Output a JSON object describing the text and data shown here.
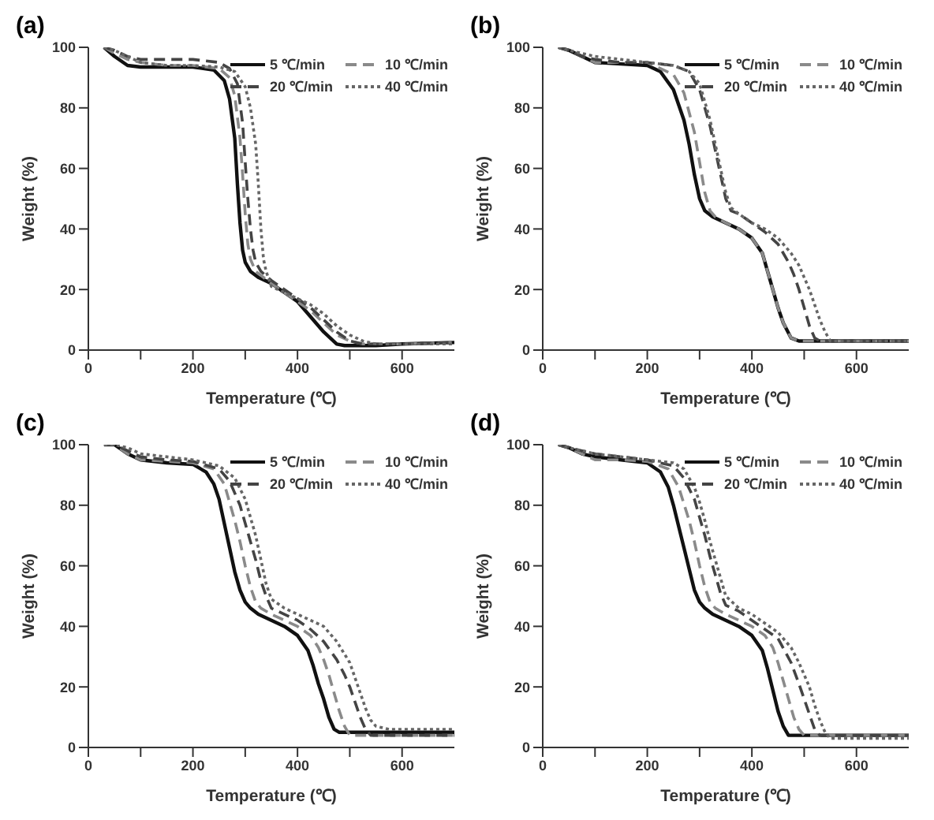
{
  "chart_data": [
    {
      "type": "line",
      "title": "(a)",
      "xlabel": "Temperature (℃)",
      "ylabel": "Weight (%)",
      "xlim": [
        0,
        700
      ],
      "xticks": [
        0,
        {
          "value": 100,
          "label": null
        },
        200,
        {
          "value": 300,
          "label": null
        },
        400,
        {
          "value": 500,
          "label": null
        },
        600
      ],
      "ylim": [
        0,
        100
      ],
      "yticks": [
        0,
        20,
        40,
        60,
        80,
        100
      ],
      "legend": "top right",
      "marker": "none",
      "series": [
        {
          "name": "5 ℃/min",
          "color": "#111111",
          "line_style": "solid",
          "x": [
            30,
            50,
            75,
            100,
            150,
            200,
            240,
            260,
            270,
            280,
            285,
            290,
            295,
            300,
            310,
            325,
            350,
            375,
            400,
            425,
            450,
            475,
            490,
            550,
            600,
            700
          ],
          "values": [
            100,
            97,
            94,
            93.5,
            93.5,
            93.5,
            92.5,
            89,
            83,
            70,
            55,
            42,
            33,
            29,
            26,
            24,
            22,
            19,
            16,
            11,
            6,
            2,
            1.5,
            1.5,
            2,
            2.5
          ]
        },
        {
          "name": "10 ℃/min",
          "color": "#8a8a8a",
          "line_style": "dashed",
          "x": [
            30,
            50,
            75,
            100,
            150,
            200,
            250,
            270,
            280,
            290,
            295,
            300,
            305,
            310,
            320,
            350,
            375,
            400,
            425,
            450,
            475,
            500,
            525,
            550,
            600,
            700
          ],
          "values": [
            100,
            98,
            96,
            95,
            94,
            94,
            93,
            90,
            84,
            70,
            58,
            45,
            35,
            30,
            26,
            22,
            19,
            16,
            13,
            9,
            5,
            3,
            2,
            2,
            2,
            2.5
          ]
        },
        {
          "name": "20 ℃/min",
          "color": "#444444",
          "line_style": "dashed",
          "x": [
            30,
            50,
            75,
            100,
            150,
            200,
            250,
            270,
            285,
            295,
            300,
            305,
            310,
            315,
            320,
            330,
            350,
            375,
            400,
            425,
            450,
            475,
            500,
            525,
            550,
            600,
            700
          ],
          "values": [
            100,
            99,
            97,
            96,
            96,
            96,
            95,
            93,
            88,
            75,
            62,
            50,
            40,
            33,
            29,
            26,
            23,
            20,
            17,
            14,
            10,
            6,
            3,
            2,
            2,
            2,
            2.5
          ]
        },
        {
          "name": "40 ℃/min",
          "color": "#666666",
          "line_style": "dotted",
          "x": [
            30,
            50,
            75,
            100,
            150,
            200,
            250,
            280,
            300,
            310,
            320,
            325,
            330,
            335,
            340,
            350,
            375,
            400,
            425,
            450,
            475,
            500,
            525,
            550,
            600,
            700
          ],
          "values": [
            100,
            99,
            97,
            95,
            94,
            94,
            93.5,
            92,
            87,
            80,
            68,
            55,
            40,
            30,
            26,
            21,
            19,
            17,
            15,
            12,
            8,
            5,
            3,
            2,
            2,
            2
          ]
        }
      ]
    },
    {
      "type": "line",
      "title": "(b)",
      "xlabel": "Temperature (℃)",
      "ylabel": "Weight (%)",
      "xlim": [
        0,
        700
      ],
      "xticks": [
        0,
        {
          "value": 100,
          "label": null
        },
        200,
        {
          "value": 300,
          "label": null
        },
        400,
        {
          "value": 500,
          "label": null
        },
        600
      ],
      "ylim": [
        0,
        100
      ],
      "yticks": [
        0,
        20,
        40,
        60,
        80,
        100
      ],
      "legend": "top right",
      "marker": "none",
      "series": [
        {
          "name": "5 ℃/min",
          "color": "#111111",
          "line_style": "solid",
          "x": [
            30,
            50,
            75,
            100,
            150,
            200,
            225,
            250,
            270,
            280,
            290,
            300,
            310,
            325,
            350,
            375,
            400,
            420,
            430,
            440,
            450,
            460,
            475,
            490,
            500,
            550,
            600,
            700
          ],
          "values": [
            100,
            99,
            97,
            95,
            94.5,
            94,
            92,
            86,
            76,
            68,
            58,
            50,
            46,
            44,
            42,
            40,
            37,
            32,
            26,
            20,
            14,
            9,
            4,
            3,
            3,
            3,
            3,
            3
          ]
        },
        {
          "name": "10 ℃/min",
          "color": "#8a8a8a",
          "line_style": "dashed",
          "x": [
            30,
            50,
            75,
            100,
            150,
            200,
            250,
            270,
            290,
            300,
            310,
            320,
            330,
            340,
            350,
            375,
            400,
            420,
            430,
            440,
            450,
            460,
            475,
            490,
            500,
            550,
            600,
            700
          ],
          "values": [
            100,
            99,
            97,
            95,
            95,
            95,
            91,
            85,
            72,
            62,
            52,
            46,
            44,
            43,
            42,
            40,
            37,
            32,
            26,
            20,
            14,
            9,
            4,
            3,
            3,
            3,
            3,
            3
          ]
        },
        {
          "name": "20 ℃/min",
          "color": "#444444",
          "line_style": "dashed",
          "x": [
            30,
            50,
            75,
            100,
            150,
            200,
            250,
            280,
            300,
            310,
            320,
            330,
            340,
            350,
            360,
            375,
            400,
            425,
            450,
            470,
            480,
            490,
            500,
            510,
            520,
            530,
            550,
            600,
            700
          ],
          "values": [
            100,
            99,
            97,
            96,
            95,
            95,
            94,
            92,
            86,
            80,
            74,
            66,
            58,
            50,
            46,
            45,
            42,
            39,
            35,
            29,
            25,
            20,
            14,
            8,
            4,
            3,
            3,
            3,
            3
          ]
        },
        {
          "name": "40 ℃/min",
          "color": "#666666",
          "line_style": "dotted",
          "x": [
            30,
            50,
            75,
            100,
            150,
            200,
            250,
            280,
            300,
            310,
            320,
            330,
            340,
            350,
            360,
            375,
            400,
            425,
            450,
            475,
            490,
            500,
            510,
            520,
            530,
            540,
            550,
            600,
            700
          ],
          "values": [
            100,
            99,
            98,
            97,
            96,
            95,
            94,
            92,
            88,
            82,
            76,
            68,
            60,
            52,
            47,
            45,
            42,
            40,
            37,
            32,
            28,
            24,
            20,
            15,
            10,
            6,
            3,
            3,
            3
          ]
        }
      ]
    },
    {
      "type": "line",
      "title": "(c)",
      "xlabel": "Temperature (℃)",
      "ylabel": "Weight (%)",
      "xlim": [
        0,
        700
      ],
      "xticks": [
        0,
        {
          "value": 100,
          "label": null
        },
        200,
        {
          "value": 300,
          "label": null
        },
        400,
        {
          "value": 500,
          "label": null
        },
        600
      ],
      "ylim": [
        0,
        100
      ],
      "yticks": [
        0,
        20,
        40,
        60,
        80,
        100
      ],
      "legend": "top right",
      "marker": "none",
      "series": [
        {
          "name": "5 ℃/min",
          "color": "#111111",
          "line_style": "solid",
          "x": [
            30,
            50,
            75,
            100,
            150,
            200,
            225,
            240,
            250,
            260,
            270,
            280,
            290,
            300,
            310,
            325,
            350,
            375,
            400,
            420,
            430,
            440,
            450,
            460,
            470,
            480,
            500,
            600,
            700
          ],
          "values": [
            100,
            100,
            97,
            95,
            94,
            93.5,
            91,
            87,
            82,
            74,
            66,
            58,
            52,
            48,
            46,
            44,
            42,
            40,
            37,
            32,
            27,
            21,
            16,
            10,
            6,
            5,
            5,
            5,
            5
          ]
        },
        {
          "name": "10 ℃/min",
          "color": "#8a8a8a",
          "line_style": "dashed",
          "x": [
            30,
            50,
            75,
            100,
            150,
            200,
            240,
            260,
            280,
            290,
            300,
            310,
            320,
            330,
            340,
            350,
            375,
            400,
            425,
            440,
            450,
            460,
            470,
            480,
            490,
            500,
            525,
            600,
            700
          ],
          "values": [
            100,
            100,
            97,
            95,
            94.5,
            94,
            92,
            87,
            75,
            68,
            60,
            53,
            48,
            46,
            45,
            44,
            42,
            40,
            37,
            33,
            29,
            24,
            18,
            12,
            7,
            4,
            4,
            4,
            4
          ]
        },
        {
          "name": "20 ℃/min",
          "color": "#444444",
          "line_style": "dashed",
          "x": [
            30,
            50,
            75,
            100,
            150,
            200,
            250,
            270,
            290,
            300,
            310,
            320,
            330,
            340,
            350,
            375,
            400,
            425,
            450,
            475,
            490,
            500,
            510,
            520,
            530,
            540,
            550,
            600,
            700
          ],
          "values": [
            100,
            100,
            98,
            96,
            95,
            94.5,
            92,
            88,
            80,
            74,
            68,
            62,
            55,
            50,
            46,
            44,
            42,
            39,
            35,
            29,
            24,
            20,
            15,
            10,
            6,
            4,
            4,
            4,
            4
          ]
        },
        {
          "name": "40 ℃/min",
          "color": "#666666",
          "line_style": "dotted",
          "x": [
            30,
            50,
            75,
            100,
            150,
            200,
            250,
            280,
            300,
            310,
            320,
            330,
            340,
            350,
            375,
            400,
            425,
            450,
            475,
            500,
            510,
            520,
            530,
            540,
            550,
            575,
            600,
            700
          ],
          "values": [
            100,
            100,
            99,
            97,
            96,
            95,
            93,
            89,
            82,
            76,
            70,
            62,
            54,
            49,
            46,
            44,
            42,
            40,
            35,
            28,
            23,
            18,
            13,
            9,
            7,
            6,
            6,
            6
          ]
        }
      ]
    },
    {
      "type": "line",
      "title": "(d)",
      "xlabel": "Temperature (℃)",
      "ylabel": "Weight (%)",
      "xlim": [
        0,
        700
      ],
      "xticks": [
        0,
        {
          "value": 100,
          "label": null
        },
        200,
        {
          "value": 300,
          "label": null
        },
        400,
        {
          "value": 500,
          "label": null
        },
        600
      ],
      "ylim": [
        0,
        100
      ],
      "yticks": [
        0,
        20,
        40,
        60,
        80,
        100
      ],
      "legend": "top right",
      "marker": "none",
      "series": [
        {
          "name": "5 ℃/min",
          "color": "#111111",
          "line_style": "solid",
          "x": [
            30,
            50,
            75,
            100,
            150,
            200,
            225,
            240,
            250,
            260,
            270,
            280,
            290,
            300,
            310,
            325,
            350,
            375,
            400,
            420,
            430,
            440,
            450,
            460,
            470,
            480,
            500,
            600,
            700
          ],
          "values": [
            100,
            99,
            97,
            96,
            95,
            94,
            91,
            86,
            80,
            73,
            66,
            59,
            52,
            48,
            46,
            44,
            42,
            40,
            37,
            32,
            26,
            19,
            12,
            7,
            4,
            4,
            4,
            4,
            4
          ]
        },
        {
          "name": "10 ℃/min",
          "color": "#8a8a8a",
          "line_style": "dashed",
          "x": [
            30,
            50,
            75,
            100,
            150,
            200,
            240,
            260,
            280,
            290,
            300,
            310,
            320,
            330,
            340,
            350,
            375,
            400,
            425,
            440,
            450,
            460,
            470,
            480,
            490,
            500,
            525,
            600,
            700
          ],
          "values": [
            100,
            99,
            97,
            95,
            95,
            94.5,
            92,
            86,
            75,
            68,
            60,
            53,
            48,
            46,
            45,
            44,
            42,
            40,
            37,
            33,
            28,
            22,
            16,
            10,
            6,
            4,
            4,
            4,
            4
          ]
        },
        {
          "name": "20 ℃/min",
          "color": "#444444",
          "line_style": "dashed",
          "x": [
            30,
            50,
            75,
            100,
            150,
            200,
            250,
            270,
            290,
            300,
            310,
            320,
            330,
            340,
            350,
            375,
            400,
            425,
            450,
            475,
            490,
            500,
            510,
            520,
            530,
            540,
            600,
            700
          ],
          "values": [
            100,
            99,
            98,
            97,
            96,
            95,
            93,
            89,
            82,
            76,
            70,
            63,
            57,
            51,
            47,
            45,
            42,
            39,
            36,
            28,
            21,
            16,
            11,
            6,
            4,
            4,
            4,
            4
          ]
        },
        {
          "name": "40 ℃/min",
          "color": "#666666",
          "line_style": "dotted",
          "x": [
            30,
            50,
            75,
            100,
            150,
            200,
            250,
            270,
            290,
            300,
            310,
            320,
            330,
            340,
            350,
            375,
            400,
            425,
            450,
            475,
            490,
            500,
            510,
            520,
            530,
            540,
            550,
            600,
            700
          ],
          "values": [
            100,
            99,
            98,
            97,
            96,
            95,
            94,
            92,
            86,
            81,
            75,
            68,
            62,
            56,
            50,
            46,
            44,
            41,
            38,
            33,
            28,
            24,
            20,
            14,
            9,
            5,
            3,
            3,
            3
          ]
        }
      ]
    }
  ]
}
